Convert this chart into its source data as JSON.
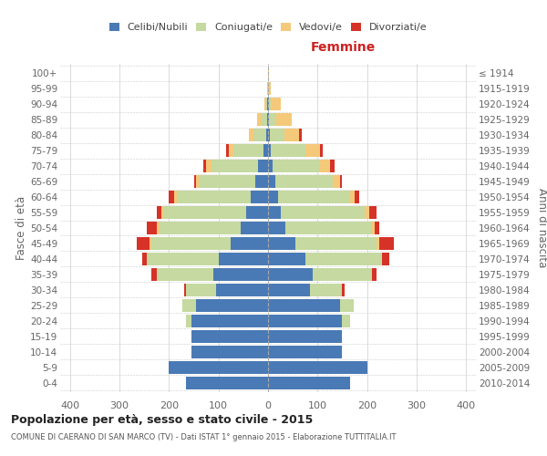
{
  "age_groups": [
    "100+",
    "95-99",
    "90-94",
    "85-89",
    "80-84",
    "75-79",
    "70-74",
    "65-69",
    "60-64",
    "55-59",
    "50-54",
    "45-49",
    "40-44",
    "35-39",
    "30-34",
    "25-29",
    "20-24",
    "15-19",
    "10-14",
    "5-9",
    "0-4"
  ],
  "birth_years": [
    "≤ 1914",
    "1915-1919",
    "1920-1924",
    "1925-1929",
    "1930-1934",
    "1935-1939",
    "1940-1944",
    "1945-1949",
    "1950-1954",
    "1955-1959",
    "1960-1964",
    "1965-1969",
    "1970-1974",
    "1975-1979",
    "1980-1984",
    "1985-1989",
    "1990-1994",
    "1995-1999",
    "2000-2004",
    "2005-2009",
    "2010-2014"
  ],
  "colors": {
    "celibi": "#4a7ab5",
    "coniugati": "#c5d9a0",
    "vedovi": "#f5c97a",
    "divorziati": "#d63228"
  },
  "males": {
    "celibi": [
      0,
      0,
      1,
      2,
      4,
      10,
      20,
      25,
      35,
      45,
      55,
      75,
      100,
      110,
      105,
      145,
      155,
      155,
      155,
      200,
      165
    ],
    "coniugati": [
      0,
      1,
      3,
      10,
      25,
      60,
      95,
      115,
      150,
      165,
      165,
      160,
      145,
      115,
      60,
      28,
      10,
      0,
      0,
      0,
      0
    ],
    "vedovi": [
      0,
      1,
      4,
      10,
      10,
      10,
      10,
      5,
      5,
      5,
      5,
      5,
      0,
      0,
      0,
      0,
      0,
      0,
      0,
      0,
      0
    ],
    "divorziati": [
      0,
      0,
      0,
      0,
      0,
      5,
      5,
      5,
      10,
      10,
      20,
      25,
      10,
      10,
      5,
      0,
      0,
      0,
      0,
      0,
      0
    ]
  },
  "females": {
    "celibi": [
      0,
      0,
      1,
      2,
      3,
      5,
      10,
      15,
      20,
      25,
      35,
      55,
      75,
      90,
      85,
      145,
      150,
      150,
      150,
      200,
      165
    ],
    "coniugati": [
      0,
      0,
      5,
      15,
      30,
      70,
      95,
      115,
      145,
      170,
      175,
      165,
      155,
      120,
      65,
      28,
      15,
      0,
      0,
      0,
      0
    ],
    "vedovi": [
      2,
      5,
      20,
      30,
      30,
      30,
      20,
      15,
      10,
      10,
      5,
      5,
      0,
      0,
      0,
      0,
      0,
      0,
      0,
      0,
      0
    ],
    "divorziati": [
      0,
      0,
      0,
      0,
      5,
      5,
      10,
      5,
      10,
      15,
      10,
      30,
      15,
      10,
      5,
      0,
      0,
      0,
      0,
      0,
      0
    ]
  },
  "title": "Popolazione per età, sesso e stato civile - 2015",
  "subtitle": "COMUNE DI CAERANO DI SAN MARCO (TV) - Dati ISTAT 1° gennaio 2015 - Elaborazione TUTTITALIA.IT",
  "xlabel_right": "Femmine",
  "ylabel_left": "Fasce di età",
  "ylabel_right": "Anni di nascita",
  "xlim": 420,
  "legend_labels": [
    "Celibi/Nubili",
    "Coniugati/e",
    "Vedovi/e",
    "Divorziati/e"
  ],
  "bg_color": "#ffffff",
  "grid_color": "#cccccc"
}
